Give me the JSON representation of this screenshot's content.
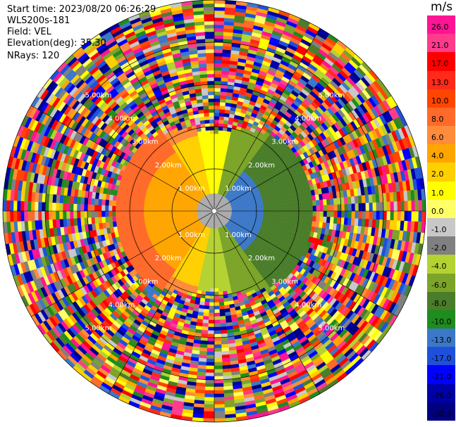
{
  "header": {
    "start_time": "Start time: 2023/08/20 06:26:29",
    "radar": "WLS200s-181",
    "field": "Field: VEL",
    "elevation": "Elevation(deg): 35.30",
    "nrays": "NRays: 120"
  },
  "colorbar": {
    "unit": "m/s",
    "labels": [
      "26.0",
      "21.0",
      "17.0",
      "13.0",
      "10.0",
      "8.0",
      "6.0",
      "4.0",
      "2.0",
      "1.0",
      "0.0",
      "-1.0",
      "-2.0",
      "-4.0",
      "-6.0",
      "-8.0",
      "-10.0",
      "-13.0",
      "-17.0",
      "-21.0",
      "-26.0",
      "-30.0"
    ],
    "colors": [
      "#ff1493",
      "#ff3b8c",
      "#ff0000",
      "#ff2a1a",
      "#ff4500",
      "#ff6a2a",
      "#ff8c3a",
      "#ffa500",
      "#ffd000",
      "#ffff00",
      "#ffff66",
      "#c8c8c8",
      "#808080",
      "#b4d232",
      "#7ba428",
      "#4a7d2a",
      "#1e8c1e",
      "#3c78c8",
      "#1e50dc",
      "#0000ff",
      "#0000aa",
      "#000080"
    ]
  },
  "ring_labels": {
    "near": "1.00km",
    "mid": "2.00km",
    "r3": "3.00km",
    "r4": "4.00km",
    "r5": "5.00km"
  },
  "map": {
    "center_color": "#ffffff"
  }
}
